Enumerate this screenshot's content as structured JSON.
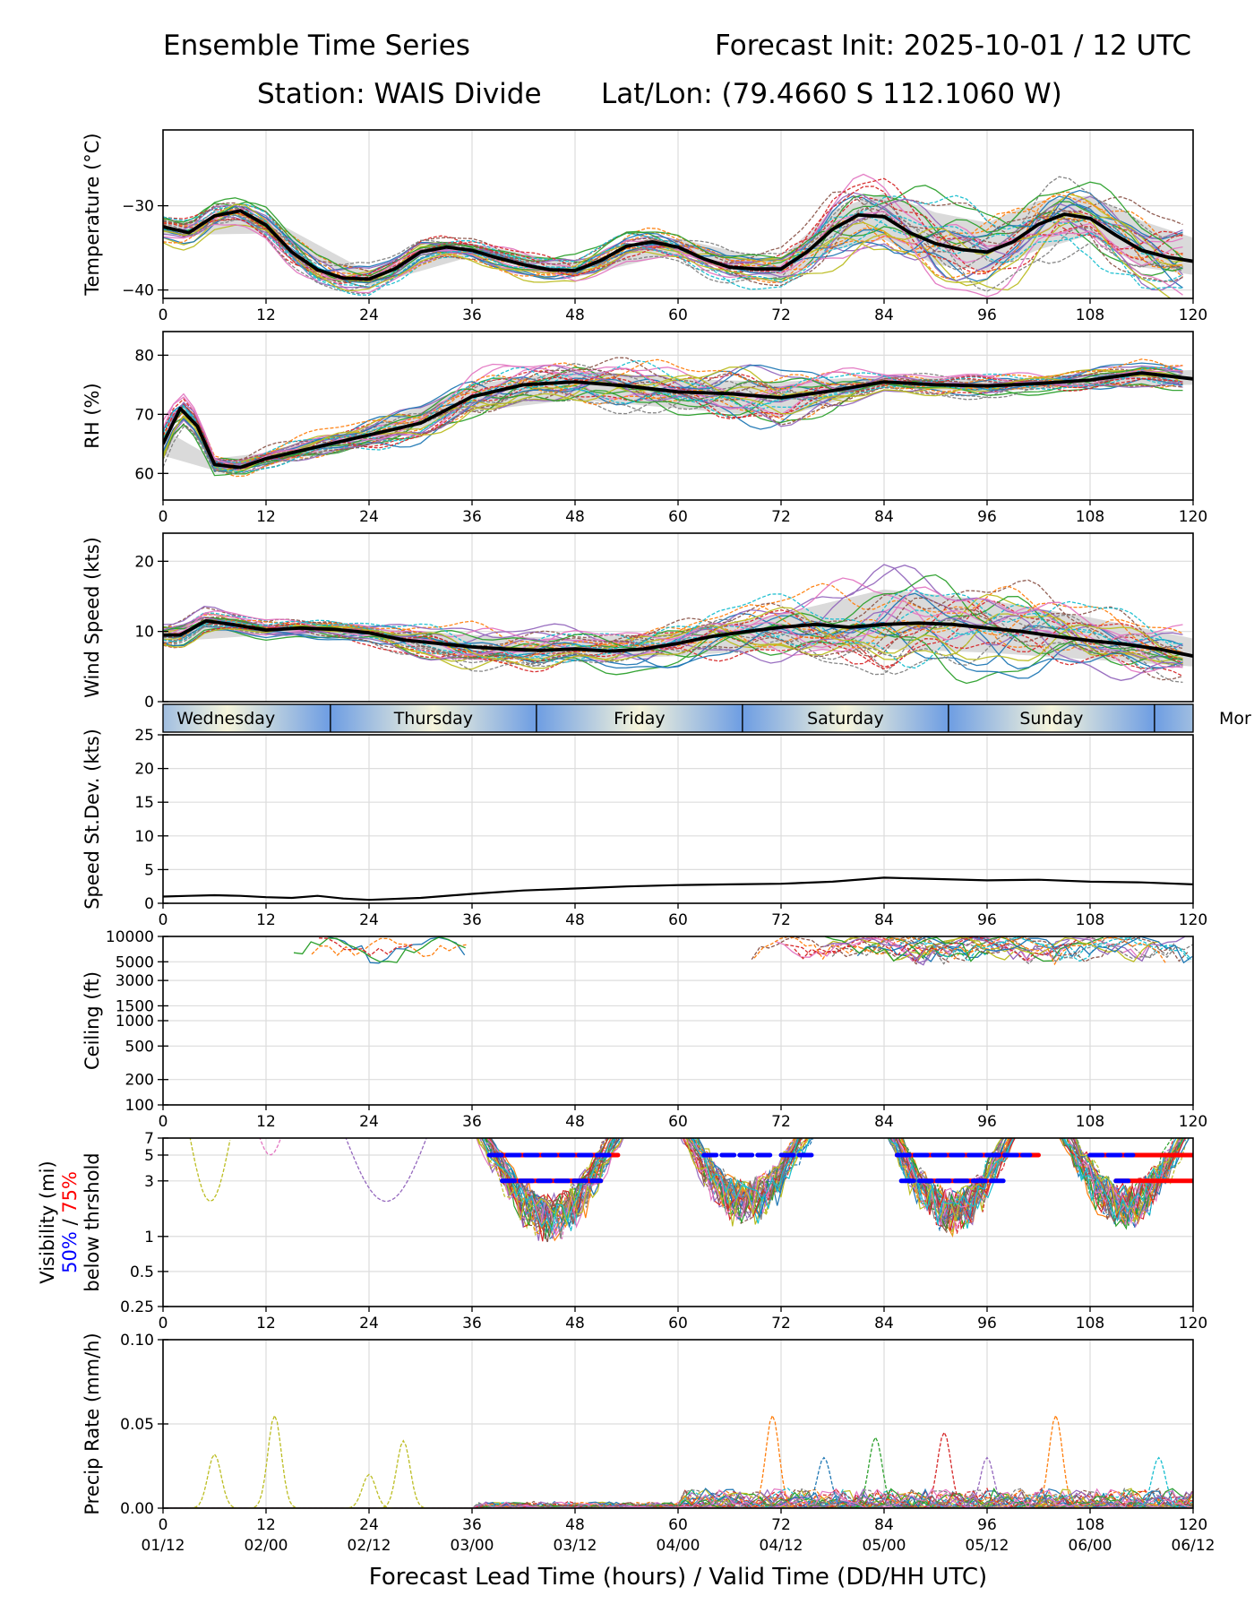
{
  "header": {
    "title_left": "Ensemble Time Series",
    "title_right": "Forecast Init: 2025-10-01 / 12 UTC",
    "station": "Station: WAIS Divide",
    "latlon": "Lat/Lon: (79.4660 S 112.1060 W)"
  },
  "x_axis": {
    "label": "Forecast Lead Time (hours) / Valid Time (DD/HH UTC)",
    "lead_ticks": [
      0,
      12,
      24,
      36,
      48,
      60,
      72,
      84,
      96,
      108,
      120
    ],
    "valid_labels": [
      "01/12",
      "02/00",
      "02/12",
      "03/00",
      "03/12",
      "04/00",
      "04/12",
      "05/00",
      "05/12",
      "06/00",
      "06/12"
    ],
    "xlim": [
      0,
      120
    ]
  },
  "day_strip": {
    "days": [
      "Wednesday",
      "Thursday",
      "Friday",
      "Saturday",
      "Sunday",
      "Mor"
    ],
    "boundaries_hours": [
      19.5,
      43.5,
      67.5,
      91.5,
      115.5
    ],
    "colors": {
      "blue": "#6d9de3",
      "cream": "#f6f5dc"
    }
  },
  "colors": {
    "members": [
      "#1f77b4",
      "#ff7f0e",
      "#2ca02c",
      "#d62728",
      "#9467bd",
      "#8c564b",
      "#e377c2",
      "#7f7f7f",
      "#bcbd22",
      "#17becf"
    ],
    "mean": "#000000",
    "spread": "#d3d3d3",
    "vis50": "#0000ff",
    "vis75": "#ff0000",
    "grid": "#dddddd"
  },
  "chart_data": [
    {
      "id": "temperature",
      "type": "line",
      "ylabel": "Temperature (°C)",
      "yscale": "linear",
      "ylim": [
        -41,
        -21
      ],
      "yticks": [
        -30,
        -40
      ],
      "ytick_labels": [
        "−30",
        "−40"
      ],
      "mean": {
        "x": [
          0,
          3,
          6,
          9,
          12,
          15,
          18,
          21,
          24,
          27,
          30,
          33,
          36,
          39,
          42,
          45,
          48,
          51,
          54,
          57,
          60,
          63,
          66,
          69,
          72,
          75,
          78,
          81,
          84,
          87,
          90,
          93,
          96,
          99,
          102,
          105,
          108,
          111,
          114,
          117,
          120
        ],
        "y": [
          -32.5,
          -33.2,
          -31.2,
          -30.6,
          -32.3,
          -35.5,
          -37.6,
          -38.6,
          -38.7,
          -37.5,
          -35.5,
          -34.9,
          -35.3,
          -36.2,
          -37.0,
          -37.6,
          -37.7,
          -36.5,
          -34.8,
          -34.3,
          -34.9,
          -36.3,
          -37.3,
          -37.5,
          -37.5,
          -35.5,
          -32.8,
          -31.1,
          -31.3,
          -33.2,
          -34.5,
          -35.2,
          -35.5,
          -34.3,
          -32.2,
          -31.0,
          -31.5,
          -33.5,
          -35.3,
          -36.1,
          -36.6
        ]
      },
      "spread": {
        "x": [
          0,
          12,
          24,
          36,
          48,
          60,
          70,
          72,
          78,
          84,
          90,
          96,
          102,
          108,
          114,
          120
        ],
        "lower": [
          -33.5,
          -33.3,
          -39.5,
          -36.0,
          -38.5,
          -35.6,
          -38.3,
          -38.8,
          -35.3,
          -34.0,
          -37.0,
          -37.7,
          -35.2,
          -33.5,
          -37.3,
          -38.2
        ],
        "upper": [
          -31.8,
          -31.3,
          -37.9,
          -34.5,
          -36.8,
          -33.9,
          -36.2,
          -36.2,
          -30.5,
          -28.5,
          -30.8,
          -32.0,
          -29.4,
          -28.8,
          -31.8,
          -33.8
        ]
      },
      "members_note": "Ensemble member traces drawn around the mean; thin dashed/solid colored lines"
    },
    {
      "id": "rh",
      "type": "line",
      "ylabel": "RH (%)",
      "yscale": "linear",
      "ylim": [
        55.5,
        84
      ],
      "yticks": [
        60,
        70,
        80
      ],
      "ytick_labels": [
        "60",
        "70",
        "80"
      ],
      "mean": {
        "x": [
          0,
          2,
          4,
          6,
          9,
          12,
          18,
          24,
          30,
          36,
          42,
          48,
          54,
          60,
          66,
          72,
          78,
          84,
          90,
          96,
          102,
          108,
          114,
          120
        ],
        "y": [
          65.0,
          71.0,
          68.0,
          61.5,
          61.0,
          62.5,
          64.5,
          66.5,
          68.5,
          73.0,
          75.0,
          75.5,
          74.8,
          73.8,
          73.5,
          72.8,
          74.0,
          75.5,
          75.0,
          74.8,
          75.2,
          75.8,
          77.0,
          76.0
        ]
      },
      "spread": {
        "x": [
          0,
          6,
          12,
          24,
          36,
          48,
          60,
          72,
          84,
          96,
          108,
          120
        ],
        "lower": [
          63.0,
          60.5,
          61.5,
          65.0,
          70.5,
          72.5,
          71.0,
          69.5,
          74.5,
          73.8,
          74.8,
          75.0
        ],
        "upper": [
          67.5,
          62.5,
          63.5,
          68.0,
          75.0,
          77.5,
          76.0,
          75.5,
          76.5,
          75.8,
          76.8,
          77.5
        ]
      }
    },
    {
      "id": "wind_speed",
      "type": "line",
      "ylabel": "Wind Speed (kts)",
      "yscale": "linear",
      "ylim": [
        0,
        24
      ],
      "yticks": [
        0,
        10,
        20
      ],
      "ytick_labels": [
        "0",
        "10",
        "20"
      ],
      "mean": {
        "x": [
          0,
          2,
          5,
          8,
          12,
          16,
          20,
          24,
          28,
          32,
          36,
          40,
          44,
          48,
          52,
          56,
          60,
          64,
          68,
          72,
          76,
          80,
          84,
          88,
          92,
          96,
          100,
          104,
          108,
          112,
          116,
          120
        ],
        "y": [
          9.5,
          9.5,
          11.5,
          11.0,
          10.2,
          10.5,
          10.3,
          9.8,
          8.8,
          8.3,
          7.8,
          7.5,
          7.3,
          7.5,
          7.2,
          7.5,
          8.3,
          9.3,
          10.0,
          10.6,
          11.0,
          10.6,
          11.0,
          11.2,
          11.0,
          10.5,
          10.0,
          9.3,
          8.7,
          8.2,
          7.5,
          6.5
        ]
      },
      "spread": {
        "x": [
          0,
          12,
          24,
          36,
          48,
          60,
          72,
          84,
          96,
          108,
          120
        ],
        "lower": [
          8.5,
          9.5,
          9.0,
          6.0,
          6.0,
          6.5,
          7.5,
          7.5,
          7.0,
          6.0,
          5.0
        ],
        "upper": [
          10.5,
          11.0,
          10.5,
          9.5,
          9.0,
          10.0,
          12.5,
          16.0,
          14.5,
          12.0,
          9.0
        ]
      }
    },
    {
      "id": "speed_stdev",
      "type": "line",
      "ylabel": "Speed St.Dev. (kts)",
      "yscale": "linear",
      "ylim": [
        0,
        25
      ],
      "yticks": [
        0,
        5,
        10,
        15,
        20,
        25
      ],
      "ytick_labels": [
        "0",
        "5",
        "10",
        "15",
        "20",
        "25"
      ],
      "series": [
        {
          "name": "St.Dev.",
          "x": [
            0,
            3,
            6,
            9,
            12,
            15,
            18,
            21,
            24,
            30,
            36,
            42,
            48,
            54,
            60,
            66,
            72,
            78,
            84,
            90,
            96,
            102,
            108,
            114,
            120
          ],
          "y": [
            1.0,
            1.1,
            1.2,
            1.1,
            0.9,
            0.8,
            1.1,
            0.7,
            0.5,
            0.8,
            1.4,
            1.9,
            2.2,
            2.5,
            2.7,
            2.8,
            2.9,
            3.2,
            3.8,
            3.6,
            3.4,
            3.5,
            3.2,
            3.1,
            2.8
          ]
        }
      ]
    },
    {
      "id": "ceiling",
      "type": "line",
      "ylabel": "Ceiling (ft)",
      "yscale": "log",
      "ylim": [
        100,
        10000
      ],
      "yticks": [
        10000,
        5000,
        3000,
        1500,
        1000,
        500,
        200,
        100
      ],
      "ytick_labels": [
        "10000",
        "5000",
        "3000",
        "1500",
        "1000",
        "500",
        "200",
        "100"
      ],
      "members_note": "Sparse member traces near 4000-10000 ft at hours 12-36 and 66-120"
    },
    {
      "id": "visibility",
      "type": "line",
      "ylabel": [
        "Visibility (mi)",
        "50% / 75%",
        "below thrshold"
      ],
      "ylabel_parts": {
        "p50": "50%",
        "sep": " / ",
        "p75": "75%"
      },
      "yscale": "log",
      "ylim": [
        0.25,
        7
      ],
      "yticks": [
        7,
        5,
        3,
        1,
        0.5,
        0.25
      ],
      "ytick_labels": [
        "7",
        "5",
        "3",
        "1",
        "0.5",
        "0.25"
      ],
      "threshold_bars": {
        "p50": [
          [
            38,
            52.5,
            5
          ],
          [
            39.5,
            51,
            3
          ],
          [
            63,
            71,
            5
          ],
          [
            72,
            76,
            5
          ],
          [
            86,
            98,
            3
          ],
          [
            85.5,
            101,
            5
          ],
          [
            108,
            113,
            5
          ],
          [
            111,
            113,
            3
          ]
        ],
        "p75": [
          [
            38,
            53,
            5
          ],
          [
            40,
            51,
            3
          ],
          [
            85.5,
            102,
            5
          ],
          [
            89,
            96,
            3
          ],
          [
            108,
            120,
            5
          ],
          [
            111,
            120,
            3
          ]
        ]
      },
      "members_note": "Member traces dip to ~0.8-2 mi during hours 36-54, 60-76, 84-100, 104-120"
    },
    {
      "id": "precip_rate",
      "type": "line",
      "ylabel": "Precip Rate (mm/h)",
      "yscale": "linear",
      "ylim": [
        0,
        0.1
      ],
      "yticks": [
        0.0,
        0.05,
        0.1
      ],
      "ytick_labels": [
        "0.00",
        "0.05",
        "0.10"
      ],
      "members_note": "Member traces mostly near 0 with peaks up to ~0.055 mm/h near hours 13, 71, 91, 104"
    }
  ]
}
